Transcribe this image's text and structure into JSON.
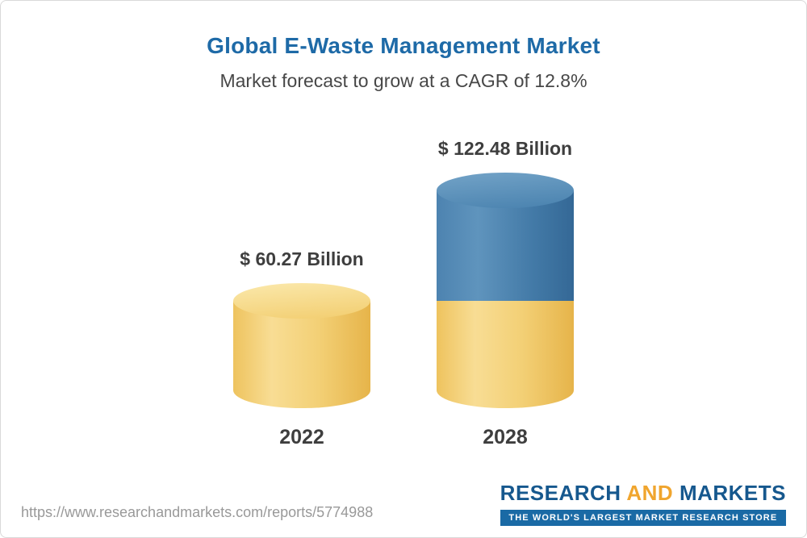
{
  "header": {
    "title": "Global E-Waste Management Market",
    "subtitle": "Market forecast to grow at a CAGR of 12.8%"
  },
  "chart_data": {
    "type": "bar",
    "title": "Global E-Waste Management Market",
    "subtitle": "Market forecast to grow at a CAGR of 12.8%",
    "categories": [
      "2022",
      "2028"
    ],
    "values": [
      60.27,
      122.48
    ],
    "value_labels": [
      "$ 60.27 Billion",
      "$ 122.48 Billion"
    ],
    "unit": "USD Billion",
    "cagr_percent": 12.8,
    "ylim": [
      0,
      122.48
    ],
    "legend": "none",
    "grid": false,
    "style": "3d-cylinder",
    "colors": {
      "base_segment_yellow": "#f3d076",
      "growth_segment_blue": "#437aa7",
      "title_blue": "#1e6aa7"
    },
    "notes": "2028 cylinder is stacked: bottom yellow portion equals the 2022 value (60.27), top blue portion equals growth (62.21)"
  },
  "footer": {
    "url": "https://www.researchandmarkets.com/reports/5774988",
    "logo": {
      "part1": "RESEARCH",
      "part2": "AND",
      "part3": "MARKETS",
      "tagline": "THE WORLD'S LARGEST MARKET RESEARCH STORE"
    }
  }
}
